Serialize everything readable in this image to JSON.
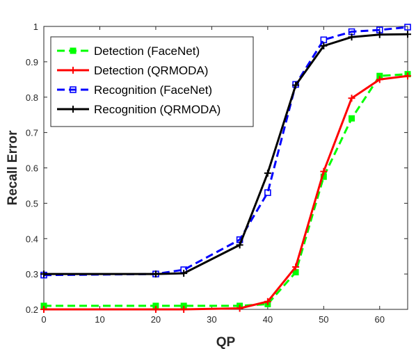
{
  "chart_data": {
    "type": "line",
    "title": "",
    "xlabel": "QP",
    "ylabel": "Recall Error",
    "xlim": [
      0,
      65
    ],
    "ylim": [
      0.2,
      1.0
    ],
    "xticks": [
      "0",
      "10",
      "20",
      "30",
      "40",
      "50",
      "60"
    ],
    "yticks": [
      "0.2",
      "0.3",
      "0.4",
      "0.5",
      "0.6",
      "0.7",
      "0.8",
      "0.9",
      "1"
    ],
    "grid": false,
    "legend_position": "top-left",
    "x": [
      0,
      20,
      25,
      35,
      40,
      45,
      50,
      55,
      60,
      65
    ],
    "series": [
      {
        "name": "Detection (FaceNet)",
        "color": "#00ff00",
        "line_style": "dashed",
        "marker": "filled-square",
        "values": [
          0.21,
          0.21,
          0.21,
          0.21,
          0.215,
          0.305,
          0.575,
          0.74,
          0.86,
          0.865
        ]
      },
      {
        "name": "Detection (QRMODA)",
        "color": "#ff0000",
        "line_style": "solid",
        "marker": "plus",
        "values": [
          0.2,
          0.2,
          0.2,
          0.203,
          0.222,
          0.32,
          0.59,
          0.797,
          0.85,
          0.86
        ]
      },
      {
        "name": "Recognition (FaceNet)",
        "color": "#0000ff",
        "line_style": "dashed",
        "marker": "open-square",
        "values": [
          0.297,
          0.3,
          0.312,
          0.397,
          0.53,
          0.836,
          0.962,
          0.985,
          0.99,
          0.998
        ]
      },
      {
        "name": "Recognition (QRMODA)",
        "color": "#000000",
        "line_style": "solid",
        "marker": "plus",
        "values": [
          0.3,
          0.3,
          0.302,
          0.382,
          0.585,
          0.834,
          0.945,
          0.97,
          0.977,
          0.978
        ]
      }
    ]
  }
}
